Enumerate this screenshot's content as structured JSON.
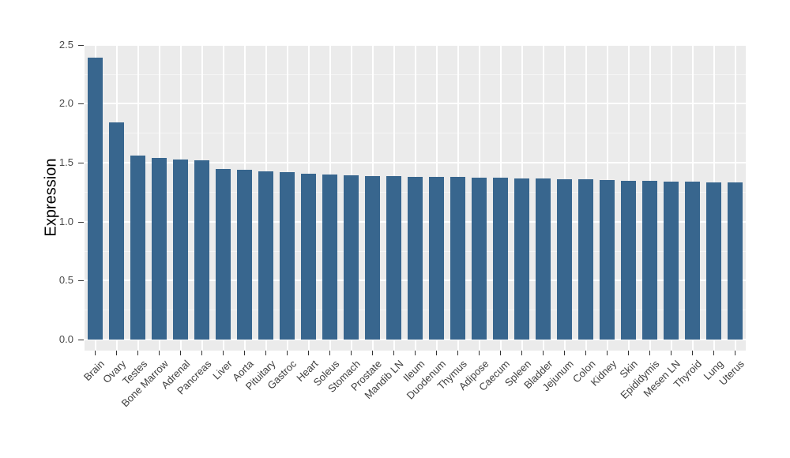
{
  "chart_data": {
    "type": "bar",
    "title": "",
    "xlabel": "",
    "ylabel": "Expression",
    "categories": [
      "Brain",
      "Ovary",
      "Testes",
      "Bone Marrow",
      "Adrenal",
      "Pancreas",
      "Liver",
      "Aorta",
      "Pituitary",
      "Gastroc",
      "Heart",
      "Soleus",
      "Stomach",
      "Prostate",
      "Mandib LN",
      "Ileum",
      "Duodenum",
      "Thymus",
      "Adipose",
      "Caecum",
      "Spleen",
      "Bladder",
      "Jejunum",
      "Colon",
      "Kidney",
      "Skin",
      "Epididymis",
      "Mesen LN",
      "Thyroid",
      "Lung",
      "Uterus"
    ],
    "values": [
      2.39,
      1.84,
      1.56,
      1.54,
      1.53,
      1.52,
      1.45,
      1.44,
      1.43,
      1.42,
      1.41,
      1.4,
      1.39,
      1.388,
      1.386,
      1.383,
      1.381,
      1.379,
      1.376,
      1.373,
      1.369,
      1.366,
      1.363,
      1.357,
      1.352,
      1.349,
      1.345,
      1.341,
      1.337,
      1.334,
      1.332
    ],
    "yticks": [
      0.0,
      0.5,
      1.0,
      1.5,
      2.0,
      2.5
    ],
    "ytick_labels": [
      "0.0",
      "0.5",
      "1.0",
      "1.5",
      "2.0",
      "2.5"
    ],
    "ylim": [
      -0.09,
      2.51
    ],
    "grid": true,
    "legend_position": "none",
    "colors": {
      "bar_fill": "#38668E",
      "panel_background": "#EBEBEB",
      "grid_major": "#FFFFFF",
      "grid_minor": "#F5F5F5",
      "tick_mark": "#333333",
      "axis_text": "#4a4a4a",
      "axis_title": "#000000"
    }
  }
}
